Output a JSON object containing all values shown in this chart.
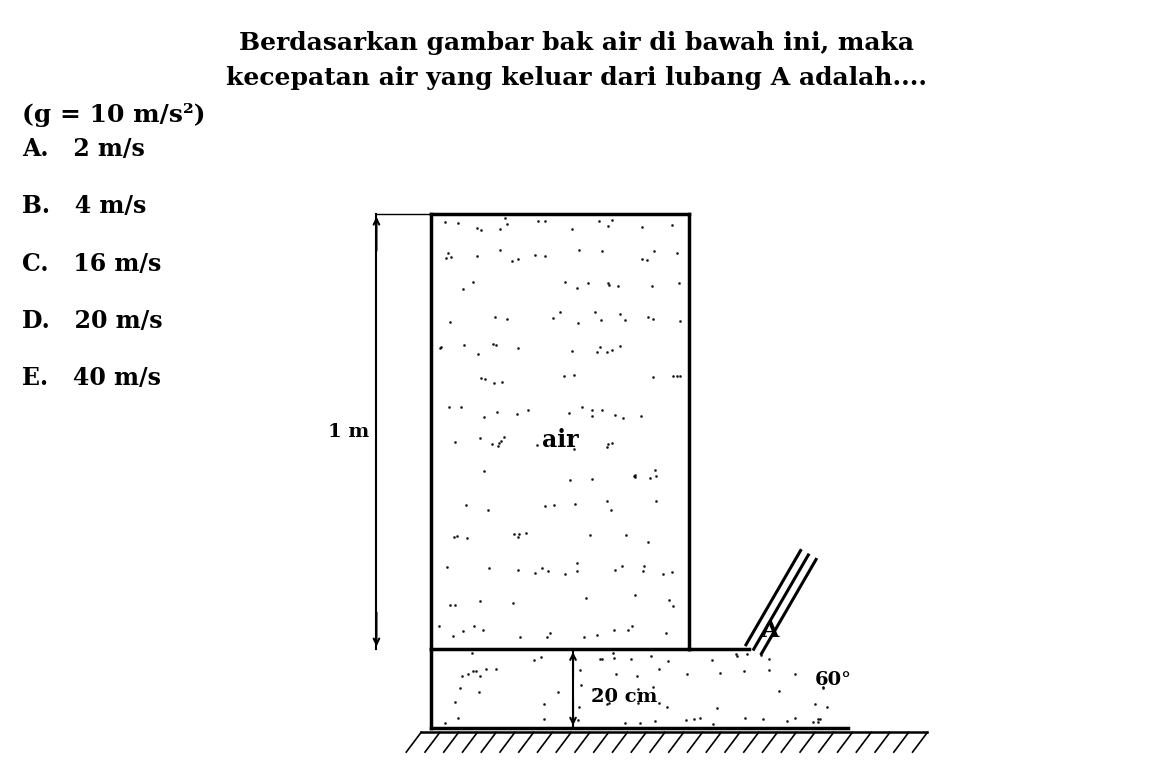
{
  "title_line1": "Berdasarkan gambar bak air di bawah ini, maka",
  "title_line2": "kecepatan air yang keluar dari lubang A adalah....",
  "g_label": "(g = 10 m/s²)",
  "options": [
    "A.   2 m/s",
    "B.   4 m/s",
    "C.   16 m/s",
    "D.   20 m/s",
    "E.   40 m/s"
  ],
  "label_1m": "1 m",
  "label_20cm": "20 cm",
  "label_air": "air",
  "label_A": "A",
  "label_60": "60°",
  "bg_color": "#ffffff",
  "font_size_title": 18,
  "font_size_options": 17,
  "font_size_labels": 14
}
